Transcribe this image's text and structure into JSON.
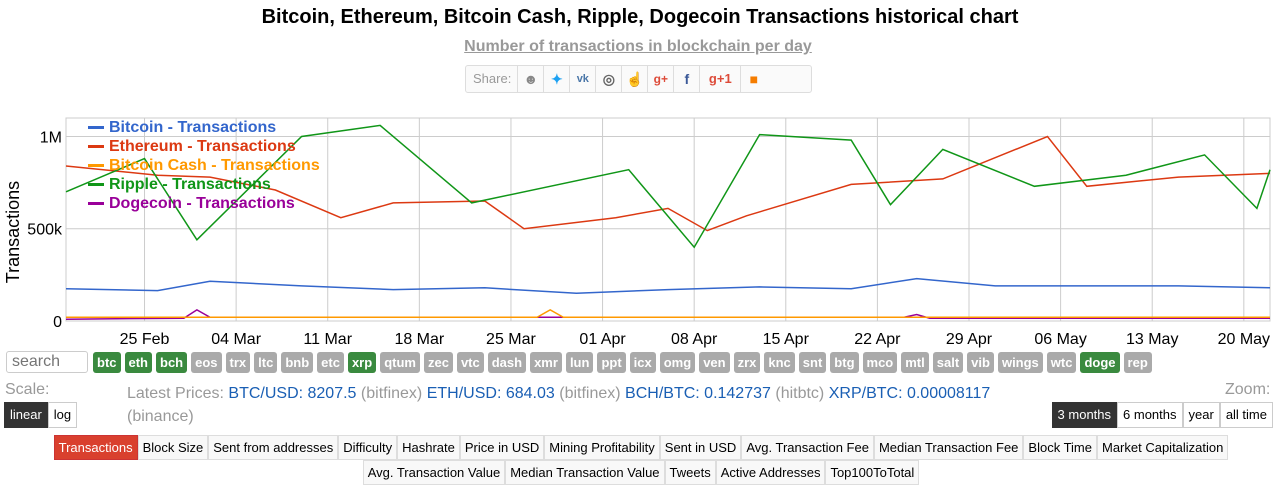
{
  "title": "Bitcoin, Ethereum, Bitcoin Cash, Ripple, Dogecoin Transactions historical chart",
  "subtitle": "Number of transactions in blockchain per day",
  "share": {
    "label": "Share:",
    "icons": [
      "reddit-icon",
      "twitter-icon",
      "vk-icon",
      "weibo-icon",
      "like-icon",
      "google-plus-icon",
      "facebook-icon",
      "google-plus-one-icon",
      "blogger-icon"
    ]
  },
  "search": {
    "placeholder": "search"
  },
  "coins": [
    {
      "label": "btc",
      "active": true
    },
    {
      "label": "eth",
      "active": true
    },
    {
      "label": "bch",
      "active": true
    },
    {
      "label": "eos",
      "active": false
    },
    {
      "label": "trx",
      "active": false
    },
    {
      "label": "ltc",
      "active": false
    },
    {
      "label": "bnb",
      "active": false
    },
    {
      "label": "etc",
      "active": false
    },
    {
      "label": "xrp",
      "active": true
    },
    {
      "label": "qtum",
      "active": false
    },
    {
      "label": "zec",
      "active": false
    },
    {
      "label": "vtc",
      "active": false
    },
    {
      "label": "dash",
      "active": false
    },
    {
      "label": "xmr",
      "active": false
    },
    {
      "label": "lun",
      "active": false
    },
    {
      "label": "ppt",
      "active": false
    },
    {
      "label": "icx",
      "active": false
    },
    {
      "label": "omg",
      "active": false
    },
    {
      "label": "ven",
      "active": false
    },
    {
      "label": "zrx",
      "active": false
    },
    {
      "label": "knc",
      "active": false
    },
    {
      "label": "snt",
      "active": false
    },
    {
      "label": "btg",
      "active": false
    },
    {
      "label": "mco",
      "active": false
    },
    {
      "label": "mtl",
      "active": false
    },
    {
      "label": "salt",
      "active": false
    },
    {
      "label": "vib",
      "active": false
    },
    {
      "label": "wings",
      "active": false
    },
    {
      "label": "wtc",
      "active": false
    },
    {
      "label": "doge",
      "active": true
    },
    {
      "label": "rep",
      "active": false
    }
  ],
  "scale": {
    "label": "Scale:",
    "options": [
      "linear",
      "log"
    ],
    "active": "linear"
  },
  "zoom": {
    "label": "Zoom:",
    "options": [
      "3 months",
      "6 months",
      "year",
      "all time"
    ],
    "active": "3 months"
  },
  "prices": {
    "label": "Latest Prices:",
    "items": [
      {
        "pair": "BTC/USD:",
        "value": "8207.5",
        "exchange": "(bitfinex)"
      },
      {
        "pair": "ETH/USD:",
        "value": "684.03",
        "exchange": "(bitfinex)"
      },
      {
        "pair": "BCH/BTC:",
        "value": "0.142737",
        "exchange": "(hitbtc)"
      },
      {
        "pair": "XRP/BTC:",
        "value": "0.00008117",
        "exchange": "(binance)"
      }
    ]
  },
  "tabs": {
    "items": [
      "Transactions",
      "Block Size",
      "Sent from addresses",
      "Difficulty",
      "Hashrate",
      "Price in USD",
      "Mining Profitability",
      "Sent in USD",
      "Avg. Transaction Fee",
      "Median Transaction Fee",
      "Block Time",
      "Market Capitalization",
      "Avg. Transaction Value",
      "Median Transaction Value",
      "Tweets",
      "Active Addresses",
      "Top100ToTotal"
    ],
    "active": "Transactions"
  },
  "colors": {
    "btc": "#3366cc",
    "eth": "#dc3912",
    "bch": "#ff9900",
    "xrp": "#109618",
    "doge": "#990099",
    "active_tab": "#d9402e",
    "active_coin": "#3a8a3f"
  },
  "chart_data": {
    "type": "line",
    "title": "",
    "ylabel": "Transactions",
    "ylim": [
      0,
      1100000
    ],
    "yticks": [
      {
        "value": 0,
        "label": "0"
      },
      {
        "value": 500000,
        "label": "500k"
      },
      {
        "value": 1000000,
        "label": "1M"
      }
    ],
    "x_start": "2018-02-19",
    "x_end": "2018-05-22",
    "xticks": [
      {
        "date": "2018-02-25",
        "label": "25 Feb"
      },
      {
        "date": "2018-03-04",
        "label": "04 Mar"
      },
      {
        "date": "2018-03-11",
        "label": "11 Mar"
      },
      {
        "date": "2018-03-18",
        "label": "18 Mar"
      },
      {
        "date": "2018-03-25",
        "label": "25 Mar"
      },
      {
        "date": "2018-04-01",
        "label": "01 Apr"
      },
      {
        "date": "2018-04-08",
        "label": "08 Apr"
      },
      {
        "date": "2018-04-15",
        "label": "15 Apr"
      },
      {
        "date": "2018-04-22",
        "label": "22 Apr"
      },
      {
        "date": "2018-04-29",
        "label": "29 Apr"
      },
      {
        "date": "2018-05-06",
        "label": "06 May"
      },
      {
        "date": "2018-05-13",
        "label": "13 May"
      },
      {
        "date": "2018-05-20",
        "label": "20 May"
      }
    ],
    "legend_position": "top-left",
    "grid": true,
    "series": [
      {
        "name": "Bitcoin - Transactions",
        "key": "btc",
        "values": [
          {
            "x": "2018-02-19",
            "y": 175000
          },
          {
            "x": "2018-02-26",
            "y": 165000
          },
          {
            "x": "2018-03-02",
            "y": 215000
          },
          {
            "x": "2018-03-09",
            "y": 190000
          },
          {
            "x": "2018-03-16",
            "y": 170000
          },
          {
            "x": "2018-03-23",
            "y": 180000
          },
          {
            "x": "2018-03-30",
            "y": 150000
          },
          {
            "x": "2018-04-06",
            "y": 170000
          },
          {
            "x": "2018-04-13",
            "y": 185000
          },
          {
            "x": "2018-04-20",
            "y": 175000
          },
          {
            "x": "2018-04-25",
            "y": 230000
          },
          {
            "x": "2018-05-01",
            "y": 190000
          },
          {
            "x": "2018-05-08",
            "y": 190000
          },
          {
            "x": "2018-05-15",
            "y": 190000
          },
          {
            "x": "2018-05-22",
            "y": 180000
          }
        ]
      },
      {
        "name": "Ethereum - Transactions",
        "key": "eth",
        "values": [
          {
            "x": "2018-02-19",
            "y": 840000
          },
          {
            "x": "2018-02-26",
            "y": 790000
          },
          {
            "x": "2018-03-02",
            "y": 780000
          },
          {
            "x": "2018-03-07",
            "y": 710000
          },
          {
            "x": "2018-03-12",
            "y": 560000
          },
          {
            "x": "2018-03-16",
            "y": 640000
          },
          {
            "x": "2018-03-23",
            "y": 650000
          },
          {
            "x": "2018-03-26",
            "y": 500000
          },
          {
            "x": "2018-04-02",
            "y": 560000
          },
          {
            "x": "2018-04-06",
            "y": 610000
          },
          {
            "x": "2018-04-09",
            "y": 490000
          },
          {
            "x": "2018-04-12",
            "y": 570000
          },
          {
            "x": "2018-04-20",
            "y": 740000
          },
          {
            "x": "2018-04-27",
            "y": 770000
          },
          {
            "x": "2018-05-05",
            "y": 1000000
          },
          {
            "x": "2018-05-08",
            "y": 730000
          },
          {
            "x": "2018-05-15",
            "y": 780000
          },
          {
            "x": "2018-05-22",
            "y": 800000
          }
        ]
      },
      {
        "name": "Bitcoin Cash - Transactions",
        "key": "bch",
        "values": [
          {
            "x": "2018-02-19",
            "y": 20000
          },
          {
            "x": "2018-03-18",
            "y": 20000
          },
          {
            "x": "2018-03-27",
            "y": 20000
          },
          {
            "x": "2018-03-28",
            "y": 60000
          },
          {
            "x": "2018-03-29",
            "y": 20000
          },
          {
            "x": "2018-05-22",
            "y": 20000
          }
        ]
      },
      {
        "name": "Ripple - Transactions",
        "key": "xrp",
        "values": [
          {
            "x": "2018-02-19",
            "y": 700000
          },
          {
            "x": "2018-02-25",
            "y": 880000
          },
          {
            "x": "2018-03-01",
            "y": 440000
          },
          {
            "x": "2018-03-09",
            "y": 1000000
          },
          {
            "x": "2018-03-15",
            "y": 1060000
          },
          {
            "x": "2018-03-22",
            "y": 640000
          },
          {
            "x": "2018-04-03",
            "y": 820000
          },
          {
            "x": "2018-04-08",
            "y": 400000
          },
          {
            "x": "2018-04-13",
            "y": 1010000
          },
          {
            "x": "2018-04-20",
            "y": 980000
          },
          {
            "x": "2018-04-23",
            "y": 630000
          },
          {
            "x": "2018-04-27",
            "y": 930000
          },
          {
            "x": "2018-05-04",
            "y": 730000
          },
          {
            "x": "2018-05-11",
            "y": 790000
          },
          {
            "x": "2018-05-17",
            "y": 900000
          },
          {
            "x": "2018-05-21",
            "y": 610000
          },
          {
            "x": "2018-05-22",
            "y": 820000
          }
        ]
      },
      {
        "name": "Dogecoin - Transactions",
        "key": "doge",
        "values": [
          {
            "x": "2018-02-19",
            "y": 10000
          },
          {
            "x": "2018-02-28",
            "y": 15000
          },
          {
            "x": "2018-03-01",
            "y": 60000
          },
          {
            "x": "2018-03-02",
            "y": 20000
          },
          {
            "x": "2018-04-24",
            "y": 20000
          },
          {
            "x": "2018-04-25",
            "y": 35000
          },
          {
            "x": "2018-04-26",
            "y": 15000
          },
          {
            "x": "2018-05-22",
            "y": 15000
          }
        ]
      }
    ]
  }
}
